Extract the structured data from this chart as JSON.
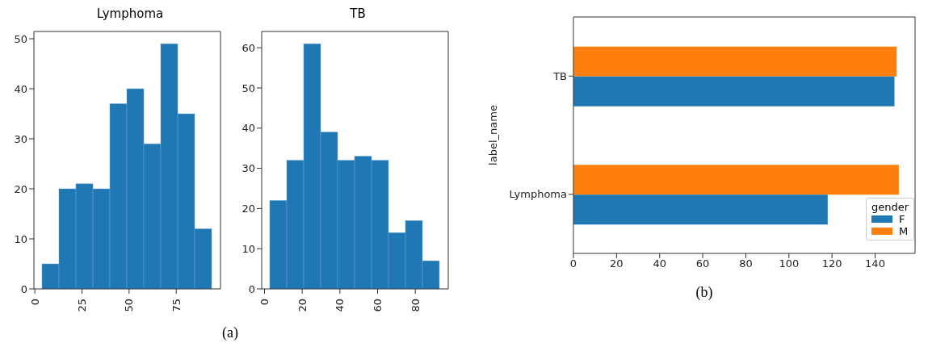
{
  "chart_data": [
    {
      "type": "histogram",
      "title": "Lymphoma",
      "bins": [
        4,
        13,
        22,
        31,
        40,
        49,
        58,
        67,
        76,
        85,
        94
      ],
      "values": [
        5,
        20,
        21,
        20,
        37,
        40,
        29,
        49,
        35,
        12
      ],
      "color": "#1f77b4",
      "xlim": [
        -0.5,
        98.5
      ],
      "ylim": [
        0,
        51.45
      ],
      "xticks": [
        0,
        25,
        50,
        75
      ],
      "yticks": [
        0,
        10,
        20,
        30,
        40,
        50
      ],
      "annotations": [
        "(a)"
      ]
    },
    {
      "type": "histogram",
      "title": "TB",
      "bins": [
        3,
        12,
        21,
        30,
        39,
        48,
        57,
        66,
        75,
        84,
        93
      ],
      "values": [
        22,
        32,
        61,
        39,
        32,
        33,
        32,
        14,
        17,
        7
      ],
      "color": "#1f77b4",
      "xlim": [
        -1.5,
        97.5
      ],
      "ylim": [
        0,
        64.05
      ],
      "xticks": [
        0,
        20,
        40,
        60,
        80
      ],
      "yticks": [
        0,
        10,
        20,
        30,
        40,
        50,
        60
      ]
    },
    {
      "type": "bar",
      "orientation": "horizontal",
      "ylabel": "label_name",
      "legend_title": "gender",
      "legend": "bottom right",
      "categories": [
        "TB",
        "Lymphoma"
      ],
      "xlim": [
        0,
        158.55
      ],
      "xticks": [
        0,
        20,
        40,
        60,
        80,
        100,
        120,
        140
      ],
      "annotations": [
        "(b)"
      ],
      "series": [
        {
          "name": "F",
          "color": "#1f77b4",
          "values": [
            149,
            118
          ]
        },
        {
          "name": "M",
          "color": "#ff7f0e",
          "values": [
            150,
            151
          ]
        }
      ]
    }
  ]
}
